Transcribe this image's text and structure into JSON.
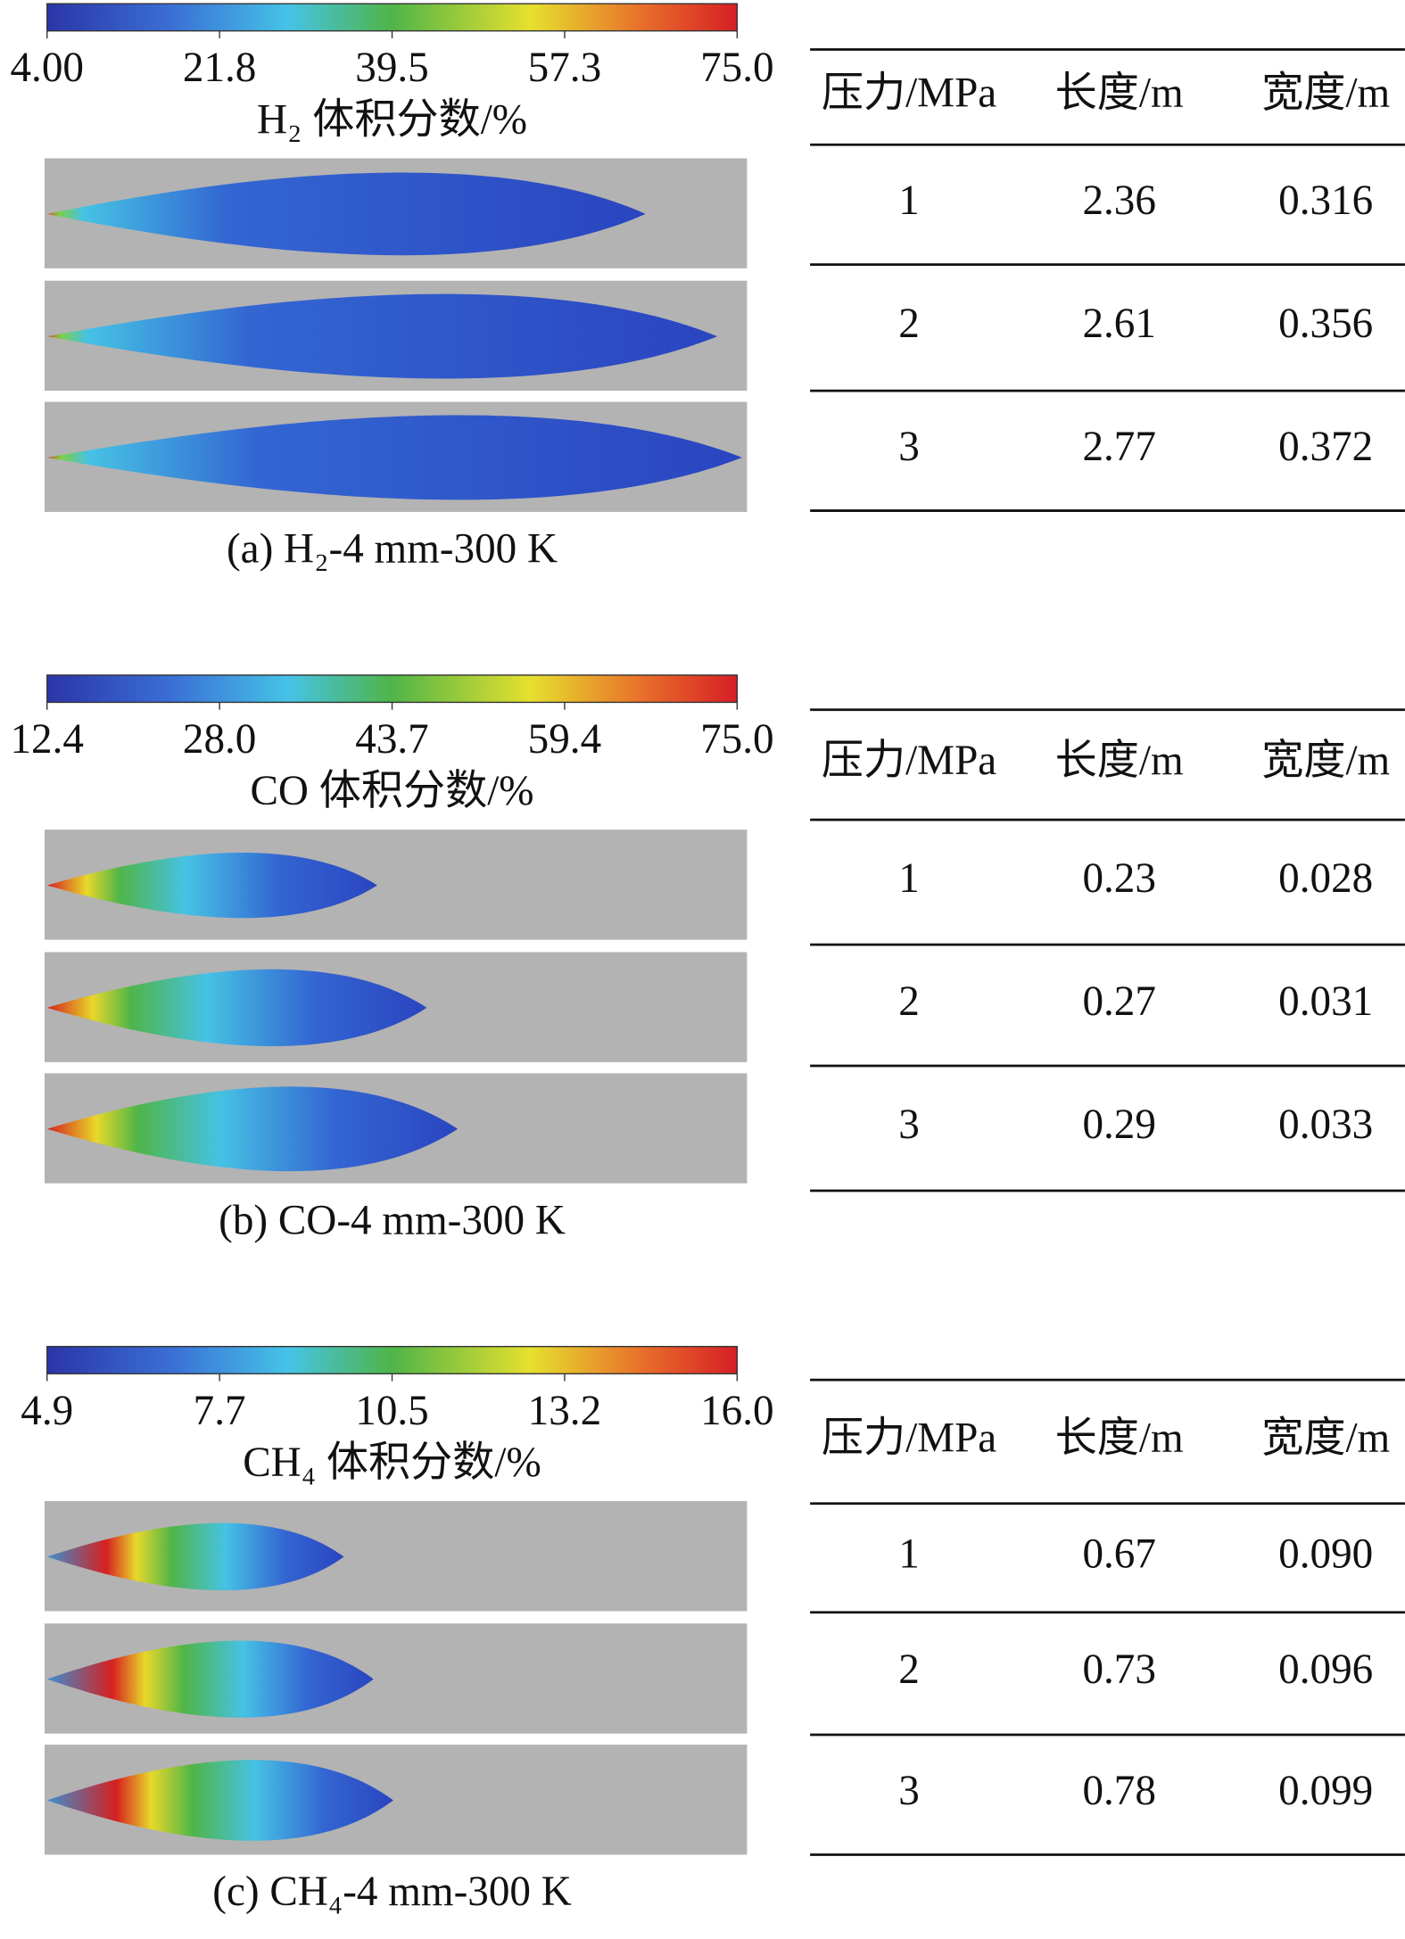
{
  "panels": [
    {
      "colorbar": {
        "ticks": [
          "4.00",
          "21.8",
          "39.5",
          "57.3",
          "75.0"
        ],
        "label": "H₂ 体积分数/%"
      },
      "table": {
        "header": [
          "压力/MPa",
          "长度/m",
          "宽度/m"
        ],
        "rows": [
          [
            "1",
            "2.36",
            "0.316"
          ],
          [
            "2",
            "2.61",
            "0.356"
          ],
          [
            "3",
            "2.77",
            "0.372"
          ]
        ]
      },
      "caption": "(a) H₂-4 mm-300 K"
    },
    {
      "colorbar": {
        "ticks": [
          "12.4",
          "28.0",
          "43.7",
          "59.4",
          "75.0"
        ],
        "label": "CO 体积分数/%"
      },
      "table": {
        "header": [
          "压力/MPa",
          "长度/m",
          "宽度/m"
        ],
        "rows": [
          [
            "1",
            "0.23",
            "0.028"
          ],
          [
            "2",
            "0.27",
            "0.031"
          ],
          [
            "3",
            "0.29",
            "0.033"
          ]
        ]
      },
      "caption": "(b) CO-4 mm-300 K"
    },
    {
      "colorbar": {
        "ticks": [
          "4.9",
          "7.7",
          "10.5",
          "13.2",
          "16.0"
        ],
        "label": "CH₄ 体积分数/%"
      },
      "table": {
        "header": [
          "压力/MPa",
          "长度/m",
          "宽度/m"
        ],
        "rows": [
          [
            "1",
            "0.67",
            "0.090"
          ],
          [
            "2",
            "0.73",
            "0.096"
          ],
          [
            "3",
            "0.78",
            "0.099"
          ]
        ]
      },
      "caption": "(c) CH₄-4 mm-300 K"
    }
  ]
}
